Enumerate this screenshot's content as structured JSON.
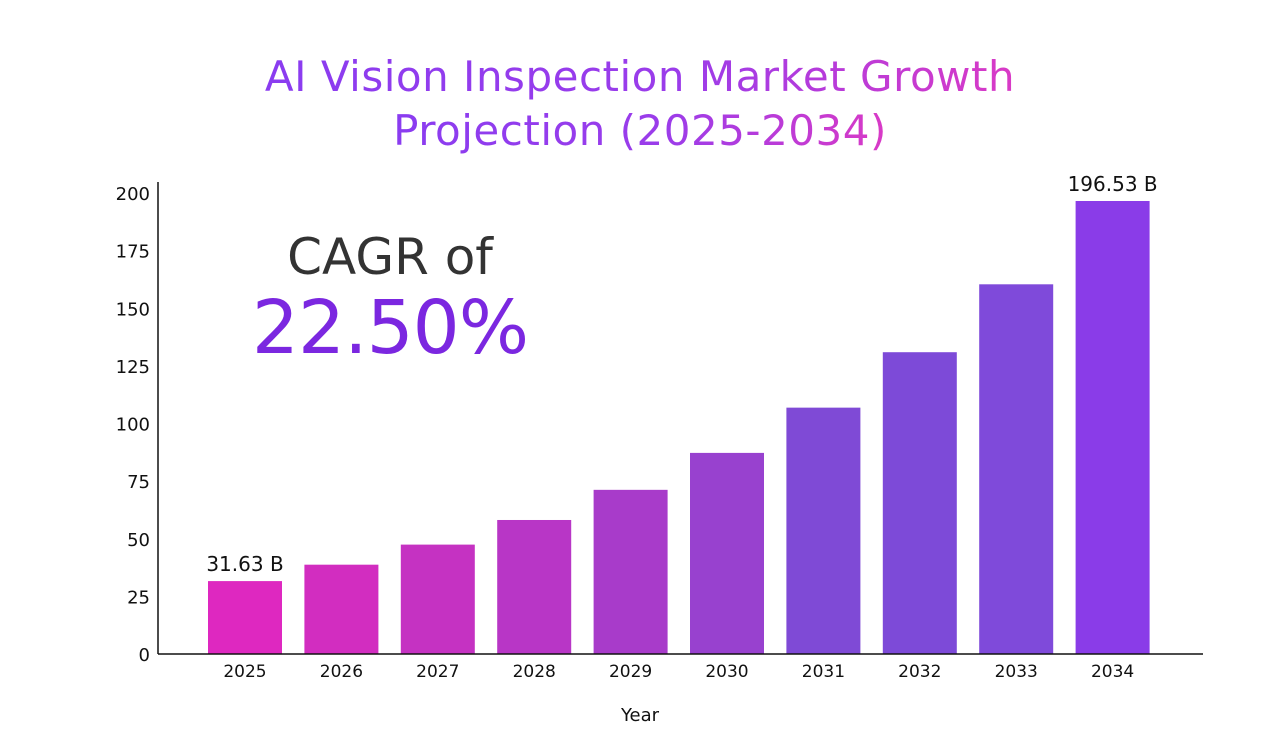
{
  "chart_data": {
    "type": "bar",
    "title": "AI Vision Inspection Market Growth Projection (2025-2034)",
    "title_lines": [
      "AI Vision Inspection Market Growth",
      "Projection (2025-2034)"
    ],
    "xlabel": "Year",
    "ylabel": "",
    "categories": [
      "2025",
      "2026",
      "2027",
      "2028",
      "2029",
      "2030",
      "2031",
      "2032",
      "2033",
      "2034"
    ],
    "values": [
      31.63,
      38.75,
      47.46,
      58.14,
      71.22,
      87.25,
      106.88,
      130.93,
      160.39,
      196.53
    ],
    "data_labels": [
      {
        "index": 0,
        "text": "31.63 B"
      },
      {
        "index": 9,
        "text": "196.53 B"
      }
    ],
    "ylim": [
      0,
      200
    ],
    "yticks": [
      "0",
      "25",
      "50",
      "75",
      "100",
      "125",
      "150",
      "175",
      "200"
    ],
    "grid": false,
    "legend": "none",
    "bar_colors": [
      "#de28c0",
      "#d22dc0",
      "#c532c2",
      "#b836c6",
      "#a83bca",
      "#9841cf",
      "#7f4ad6",
      "#7d4ad8",
      "#7f4ada",
      "#8a3ce8"
    ],
    "annotation": {
      "label": "CAGR of",
      "value": "22.50%"
    }
  }
}
